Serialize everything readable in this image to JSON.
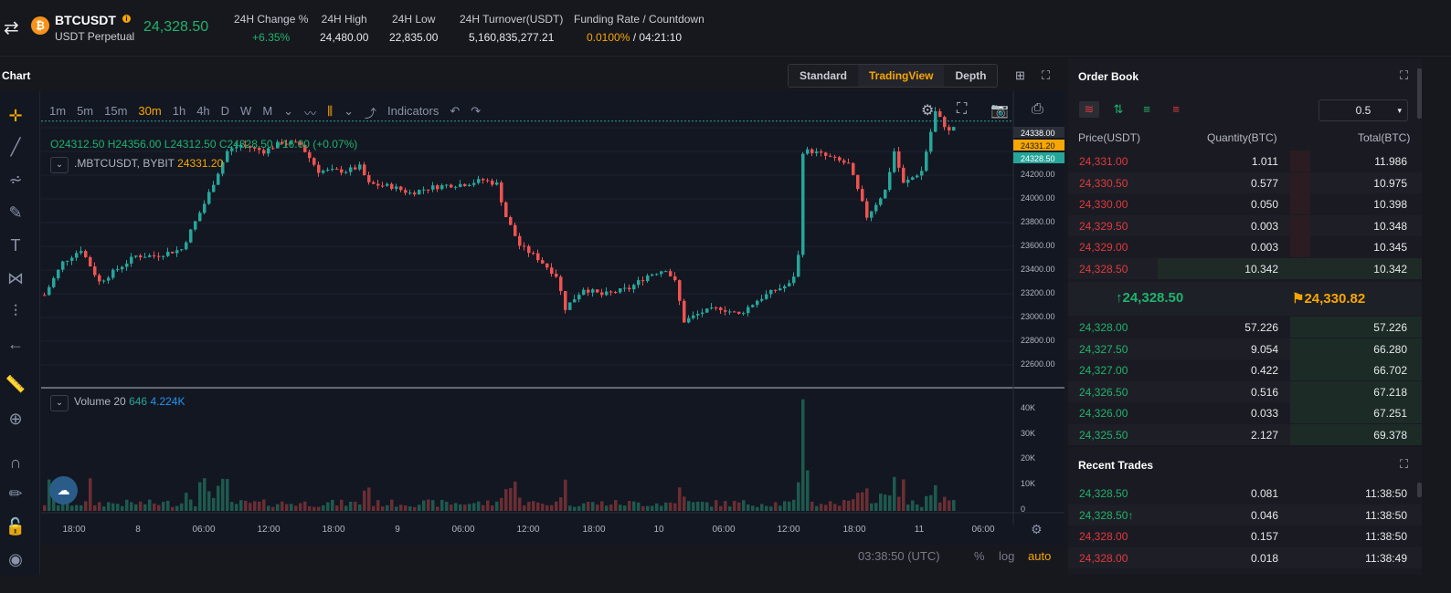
{
  "header": {
    "symbol": "BTCUSDT",
    "subtitle": "USDT Perpetual",
    "last_price": "24,328.50",
    "stats": [
      {
        "label": "24H Change %",
        "value": "+6.35%",
        "color": "#20b26c"
      },
      {
        "label": "24H High",
        "value": "24,480.00",
        "color": "#e6e8ea"
      },
      {
        "label": "24H Low",
        "value": "22,835.00",
        "color": "#e6e8ea"
      },
      {
        "label": "24H Turnover(USDT)",
        "value": "5,160,835,277.21",
        "color": "#e6e8ea"
      }
    ],
    "funding_label": "Funding Rate / Countdown",
    "funding_rate": "0.0100%",
    "countdown": " / 04:21:10"
  },
  "chart_panel": {
    "title": "Chart",
    "views": [
      "Standard",
      "TradingView",
      "Depth"
    ],
    "active_view": "TradingView",
    "intervals": [
      "1m",
      "5m",
      "15m",
      "30m",
      "1h",
      "4h",
      "D",
      "W",
      "M"
    ],
    "active_interval": "30m",
    "indicators_label": "Indicators",
    "legend_ohlc": "O24312.50  H24356.00  L24312.50  C24328.50  +16.00 (+0.07%)",
    "legend_symbol": ".MBTCUSDT, BYBIT",
    "legend_symbol_value": "24331.20",
    "volume_label": "Volume 20",
    "volume_value_1": "646",
    "volume_value_2": "4.224K",
    "price_axis": [
      "24338.00",
      "24331.20",
      "24328.50",
      "24200.00",
      "24000.00",
      "23800.00",
      "23600.00",
      "23400.00",
      "23200.00",
      "23000.00",
      "22800.00",
      "22600.00"
    ],
    "volume_axis": [
      "40K",
      "30K",
      "20K",
      "10K",
      "0"
    ],
    "time_axis": [
      "18:00",
      "8",
      "06:00",
      "12:00",
      "18:00",
      "9",
      "06:00",
      "12:00",
      "18:00",
      "10",
      "06:00",
      "12:00",
      "18:00",
      "11",
      "06:00"
    ],
    "clock": "03:38:50 (UTC)",
    "scale_options": [
      "%",
      "log",
      "auto"
    ],
    "colors": {
      "up": "#26a69a",
      "down": "#ef5350",
      "accent": "#f7a600"
    }
  },
  "order_book": {
    "title": "Order Book",
    "precision": "0.5",
    "headers": [
      "Price(USDT)",
      "Quantity(BTC)",
      "Total(BTC)"
    ],
    "asks": [
      {
        "price": "24,331.00",
        "qty": "1.011",
        "total": "11.986",
        "depth": 0.06
      },
      {
        "price": "24,330.50",
        "qty": "0.577",
        "total": "10.975",
        "depth": 0.06
      },
      {
        "price": "24,330.00",
        "qty": "0.050",
        "total": "10.398",
        "depth": 0.06
      },
      {
        "price": "24,329.50",
        "qty": "0.003",
        "total": "10.348",
        "depth": 0.06
      },
      {
        "price": "24,329.00",
        "qty": "0.003",
        "total": "10.345",
        "depth": 0.06
      },
      {
        "price": "24,328.50",
        "qty": "10.342",
        "total": "10.342",
        "depth": 0.75
      }
    ],
    "mark_price": "24,328.50",
    "index_price": "24,330.82",
    "bids": [
      {
        "price": "24,328.00",
        "qty": "57.226",
        "total": "57.226"
      },
      {
        "price": "24,327.50",
        "qty": "9.054",
        "total": "66.280"
      },
      {
        "price": "24,327.00",
        "qty": "0.422",
        "total": "66.702"
      },
      {
        "price": "24,326.50",
        "qty": "0.516",
        "total": "67.218"
      },
      {
        "price": "24,326.00",
        "qty": "0.033",
        "total": "67.251"
      },
      {
        "price": "24,325.50",
        "qty": "2.127",
        "total": "69.378"
      }
    ]
  },
  "recent_trades": {
    "title": "Recent Trades",
    "rows": [
      {
        "price": "24,328.50",
        "arrow": "",
        "qty": "0.081",
        "time": "11:38:50",
        "side": "buy"
      },
      {
        "price": "24,328.50",
        "arrow": "↑",
        "qty": "0.046",
        "time": "11:38:50",
        "side": "buy"
      },
      {
        "price": "24,328.00",
        "arrow": "",
        "qty": "0.157",
        "time": "11:38:50",
        "side": "sell"
      },
      {
        "price": "24,328.00",
        "arrow": "",
        "qty": "0.018",
        "time": "11:38:49",
        "side": "sell"
      }
    ]
  }
}
